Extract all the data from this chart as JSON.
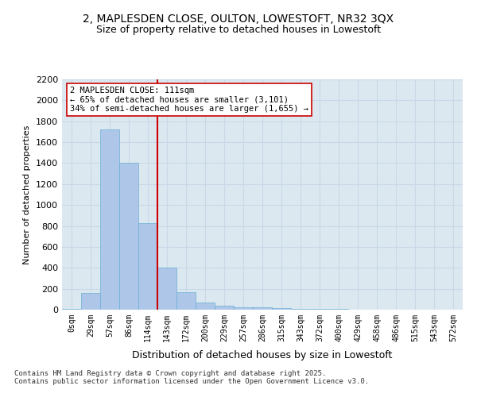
{
  "title_line1": "2, MAPLESDEN CLOSE, OULTON, LOWESTOFT, NR32 3QX",
  "title_line2": "Size of property relative to detached houses in Lowestoft",
  "xlabel": "Distribution of detached houses by size in Lowestoft",
  "ylabel": "Number of detached properties",
  "bin_labels": [
    "0sqm",
    "29sqm",
    "57sqm",
    "86sqm",
    "114sqm",
    "143sqm",
    "172sqm",
    "200sqm",
    "229sqm",
    "257sqm",
    "286sqm",
    "315sqm",
    "343sqm",
    "372sqm",
    "400sqm",
    "429sqm",
    "458sqm",
    "486sqm",
    "515sqm",
    "543sqm",
    "572sqm"
  ],
  "bar_values": [
    10,
    160,
    1720,
    1400,
    830,
    400,
    165,
    70,
    35,
    25,
    20,
    15,
    10,
    5,
    5,
    0,
    0,
    0,
    0,
    0,
    0
  ],
  "bar_color": "#aec6e8",
  "bar_edge_color": "#6aaed6",
  "grid_color": "#c8d8e8",
  "background_color": "#dce8f0",
  "vline_color": "#cc0000",
  "annotation_text": "2 MAPLESDEN CLOSE: 111sqm\n← 65% of detached houses are smaller (3,101)\n34% of semi-detached houses are larger (1,655) →",
  "annotation_box_color": "#ffffff",
  "annotation_box_edge": "#cc0000",
  "footnote": "Contains HM Land Registry data © Crown copyright and database right 2025.\nContains public sector information licensed under the Open Government Licence v3.0.",
  "ylim": [
    0,
    2200
  ],
  "yticks": [
    0,
    200,
    400,
    600,
    800,
    1000,
    1200,
    1400,
    1600,
    1800,
    2000,
    2200
  ]
}
